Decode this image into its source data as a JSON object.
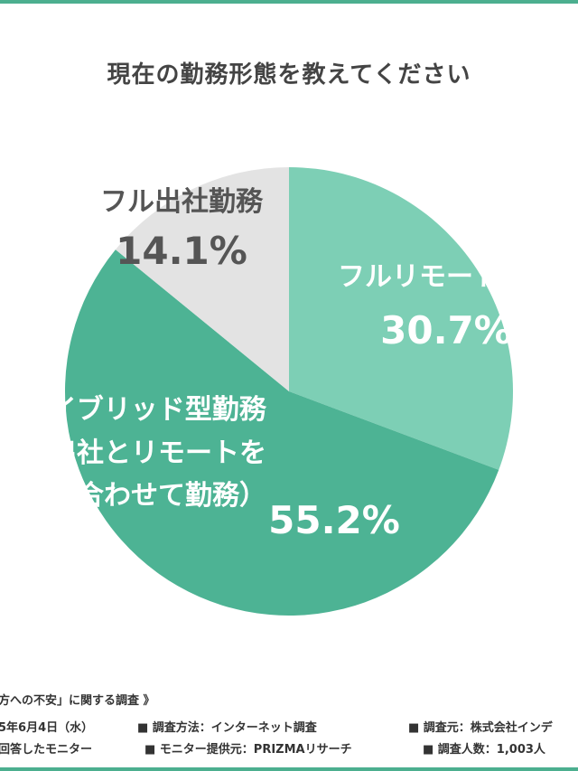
{
  "title": "現在の勤務形態を教えてください",
  "colors": {
    "bar": "#4caf8f",
    "remote": "#7dcfb5",
    "hybrid": "#4db394",
    "office": "#e3e3e3",
    "label_light": "#ffffff",
    "label_dark": "#555555"
  },
  "chart_data": {
    "type": "pie",
    "title": "現在の勤務形態を教えてください",
    "slices": [
      {
        "label": "フルリモート勤務",
        "lines": [
          "フルリモート勤務"
        ],
        "value": 30.7,
        "value_label": "30.7%",
        "color": "#7dcfb5"
      },
      {
        "label": "ハイブリッド型勤務（出社とリモートを組み合わせて勤務）",
        "lines": [
          "ハイブリッド型勤務",
          "（出社とリモートを",
          "組み合わせて勤務）"
        ],
        "value": 55.2,
        "value_label": "55.2%",
        "color": "#4db394"
      },
      {
        "label": "フル出社勤務",
        "lines": [
          "フル出社勤務"
        ],
        "value": 14.1,
        "value_label": "14.1%",
        "color": "#e3e3e3"
      }
    ],
    "start": "12 o'clock",
    "direction": "clockwise",
    "legend": "none"
  },
  "footer": {
    "source": "方への不安」に関する調査 》",
    "meta": [
      "5年6月4日（水）",
      "■ 調査方法：インターネット調査",
      "■ 調査元：株式会社インデ",
      "回答したモニター",
      "■ モニター提供元：PRIZMAリサーチ",
      "■ 調査人数：1,003人"
    ]
  }
}
